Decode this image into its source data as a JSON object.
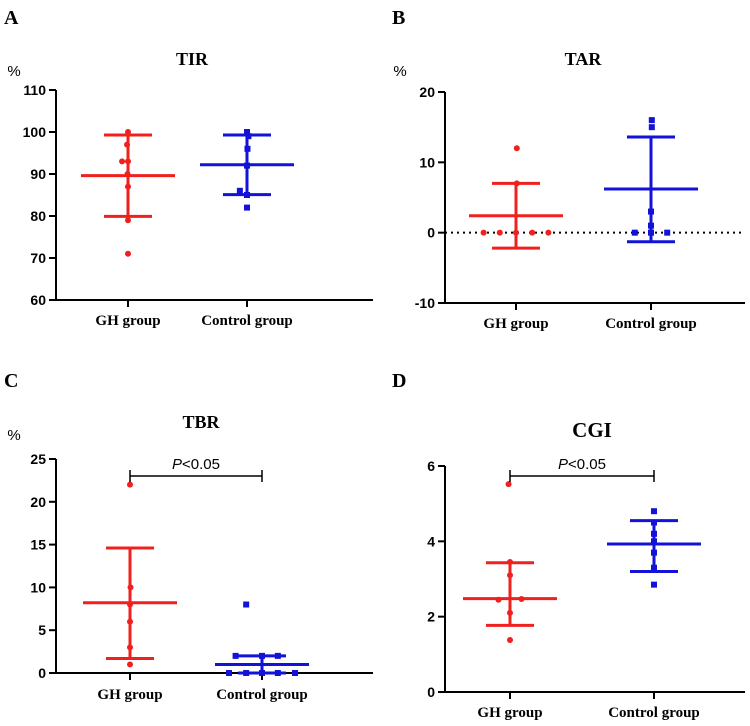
{
  "figure": {
    "colors": {
      "gh": "#f0201e",
      "control": "#1212d8",
      "axis": "#000000"
    }
  },
  "panels": [
    {
      "label": "A",
      "chart_data": {
        "type": "scatter",
        "title": "TIR",
        "ylabel": "%",
        "ylim": [
          60,
          110
        ],
        "yticks": [
          60,
          70,
          80,
          90,
          100,
          110
        ],
        "categories": [
          "GH group",
          "Control group"
        ],
        "series": [
          {
            "name": "GH group",
            "color": "#f0201e",
            "marker": "circle",
            "mean": 89.6,
            "sd_low": 79.9,
            "sd_high": 99.3,
            "points": [
              {
                "dx": 0,
                "y": 100
              },
              {
                "dx": -0.008,
                "y": 97
              },
              {
                "dx": -0.05,
                "y": 93
              },
              {
                "dx": 0,
                "y": 93
              },
              {
                "dx": -0.004,
                "y": 90
              },
              {
                "dx": 0,
                "y": 87
              },
              {
                "dx": 0,
                "y": 79
              },
              {
                "dx": 0,
                "y": 71
              }
            ]
          },
          {
            "name": "Control group",
            "color": "#1212d8",
            "marker": "square",
            "mean": 92.2,
            "sd_low": 85.1,
            "sd_high": 99.3,
            "points": [
              {
                "dx": 0,
                "y": 100
              },
              {
                "dx": 0.012,
                "y": 99
              },
              {
                "dx": 0.004,
                "y": 96
              },
              {
                "dx": 0,
                "y": 92
              },
              {
                "dx": -0.06,
                "y": 86
              },
              {
                "dx": 0,
                "y": 85
              },
              {
                "dx": 0,
                "y": 82
              }
            ]
          }
        ]
      }
    },
    {
      "label": "B",
      "chart_data": {
        "type": "scatter",
        "title": "TAR",
        "ylabel": "%",
        "ylim": [
          -10,
          20
        ],
        "yticks": [
          -10,
          0,
          10,
          20
        ],
        "refline": 0,
        "categories": [
          "GH group",
          "Control group"
        ],
        "series": [
          {
            "name": "GH group",
            "color": "#f0201e",
            "marker": "circle",
            "mean": 2.4,
            "sd_low": -2.2,
            "sd_high": 7.0,
            "points": [
              {
                "dx": 0.006,
                "y": 12
              },
              {
                "dx": 0.006,
                "y": 7
              },
              {
                "dx": -0.24,
                "y": 0
              },
              {
                "dx": -0.12,
                "y": 0
              },
              {
                "dx": 0,
                "y": 0
              },
              {
                "dx": 0.12,
                "y": 0
              },
              {
                "dx": 0.24,
                "y": 0
              }
            ]
          },
          {
            "name": "Control group",
            "color": "#1212d8",
            "marker": "square",
            "mean": 6.2,
            "sd_low": -1.3,
            "sd_high": 13.6,
            "points": [
              {
                "dx": 0.006,
                "y": 16
              },
              {
                "dx": 0.006,
                "y": 15
              },
              {
                "dx": 0,
                "y": 3
              },
              {
                "dx": 0,
                "y": 1
              },
              {
                "dx": -0.12,
                "y": 0
              },
              {
                "dx": 0,
                "y": 0
              },
              {
                "dx": 0.12,
                "y": 0
              }
            ]
          }
        ]
      }
    },
    {
      "label": "C",
      "chart_data": {
        "type": "scatter",
        "title": "TBR",
        "ylabel": "%",
        "ylim": [
          0,
          25
        ],
        "yticks": [
          0,
          5,
          10,
          15,
          20,
          25
        ],
        "categories": [
          "GH group",
          "Control group"
        ],
        "significance": {
          "p": "P",
          "text": "<0.05"
        },
        "series": [
          {
            "name": "GH group",
            "color": "#f0201e",
            "marker": "circle",
            "mean": 8.2,
            "sd_low": 1.7,
            "sd_high": 14.6,
            "points": [
              {
                "dx": 0,
                "y": 22
              },
              {
                "dx": 0.004,
                "y": 10
              },
              {
                "dx": 0,
                "y": 8
              },
              {
                "dx": 0,
                "y": 6
              },
              {
                "dx": 0,
                "y": 3
              },
              {
                "dx": 0,
                "y": 1
              }
            ]
          },
          {
            "name": "Control group",
            "color": "#1212d8",
            "marker": "square",
            "mean": 1.0,
            "sd_low": 0.0,
            "sd_high": 2.0,
            "points": [
              {
                "dx": -0.12,
                "y": 8
              },
              {
                "dx": -0.2,
                "y": 2
              },
              {
                "dx": 0,
                "y": 2
              },
              {
                "dx": 0.12,
                "y": 2
              },
              {
                "dx": -0.25,
                "y": 0
              },
              {
                "dx": -0.12,
                "y": 0
              },
              {
                "dx": 0,
                "y": 0
              },
              {
                "dx": 0.12,
                "y": 0
              },
              {
                "dx": 0.25,
                "y": 0
              }
            ]
          }
        ]
      }
    },
    {
      "label": "D",
      "chart_data": {
        "type": "scatter",
        "title": "CGI",
        "ylabel": "",
        "ylim": [
          0,
          6
        ],
        "yticks": [
          0,
          2,
          4,
          6
        ],
        "categories": [
          "GH group",
          "Control group"
        ],
        "significance": {
          "p": "P",
          "text": "<0.05"
        },
        "series": [
          {
            "name": "GH group",
            "color": "#f0201e",
            "marker": "circle",
            "mean": 2.48,
            "sd_low": 1.77,
            "sd_high": 3.43,
            "points": [
              {
                "dx": -0.01,
                "y": 5.52
              },
              {
                "dx": 0,
                "y": 3.45
              },
              {
                "dx": 0,
                "y": 3.1
              },
              {
                "dx": 0.08,
                "y": 2.47
              },
              {
                "dx": -0.08,
                "y": 2.45
              },
              {
                "dx": 0,
                "y": 2.1
              },
              {
                "dx": 0,
                "y": 1.38
              }
            ]
          },
          {
            "name": "Control group",
            "color": "#1212d8",
            "marker": "square",
            "mean": 3.93,
            "sd_low": 3.2,
            "sd_high": 4.55,
            "points": [
              {
                "dx": 0,
                "y": 4.8
              },
              {
                "dx": 0,
                "y": 4.5
              },
              {
                "dx": 0,
                "y": 4.2
              },
              {
                "dx": 0,
                "y": 4.0
              },
              {
                "dx": 0,
                "y": 3.7
              },
              {
                "dx": 0,
                "y": 3.3
              },
              {
                "dx": 0,
                "y": 2.85
              }
            ]
          }
        ]
      }
    }
  ]
}
